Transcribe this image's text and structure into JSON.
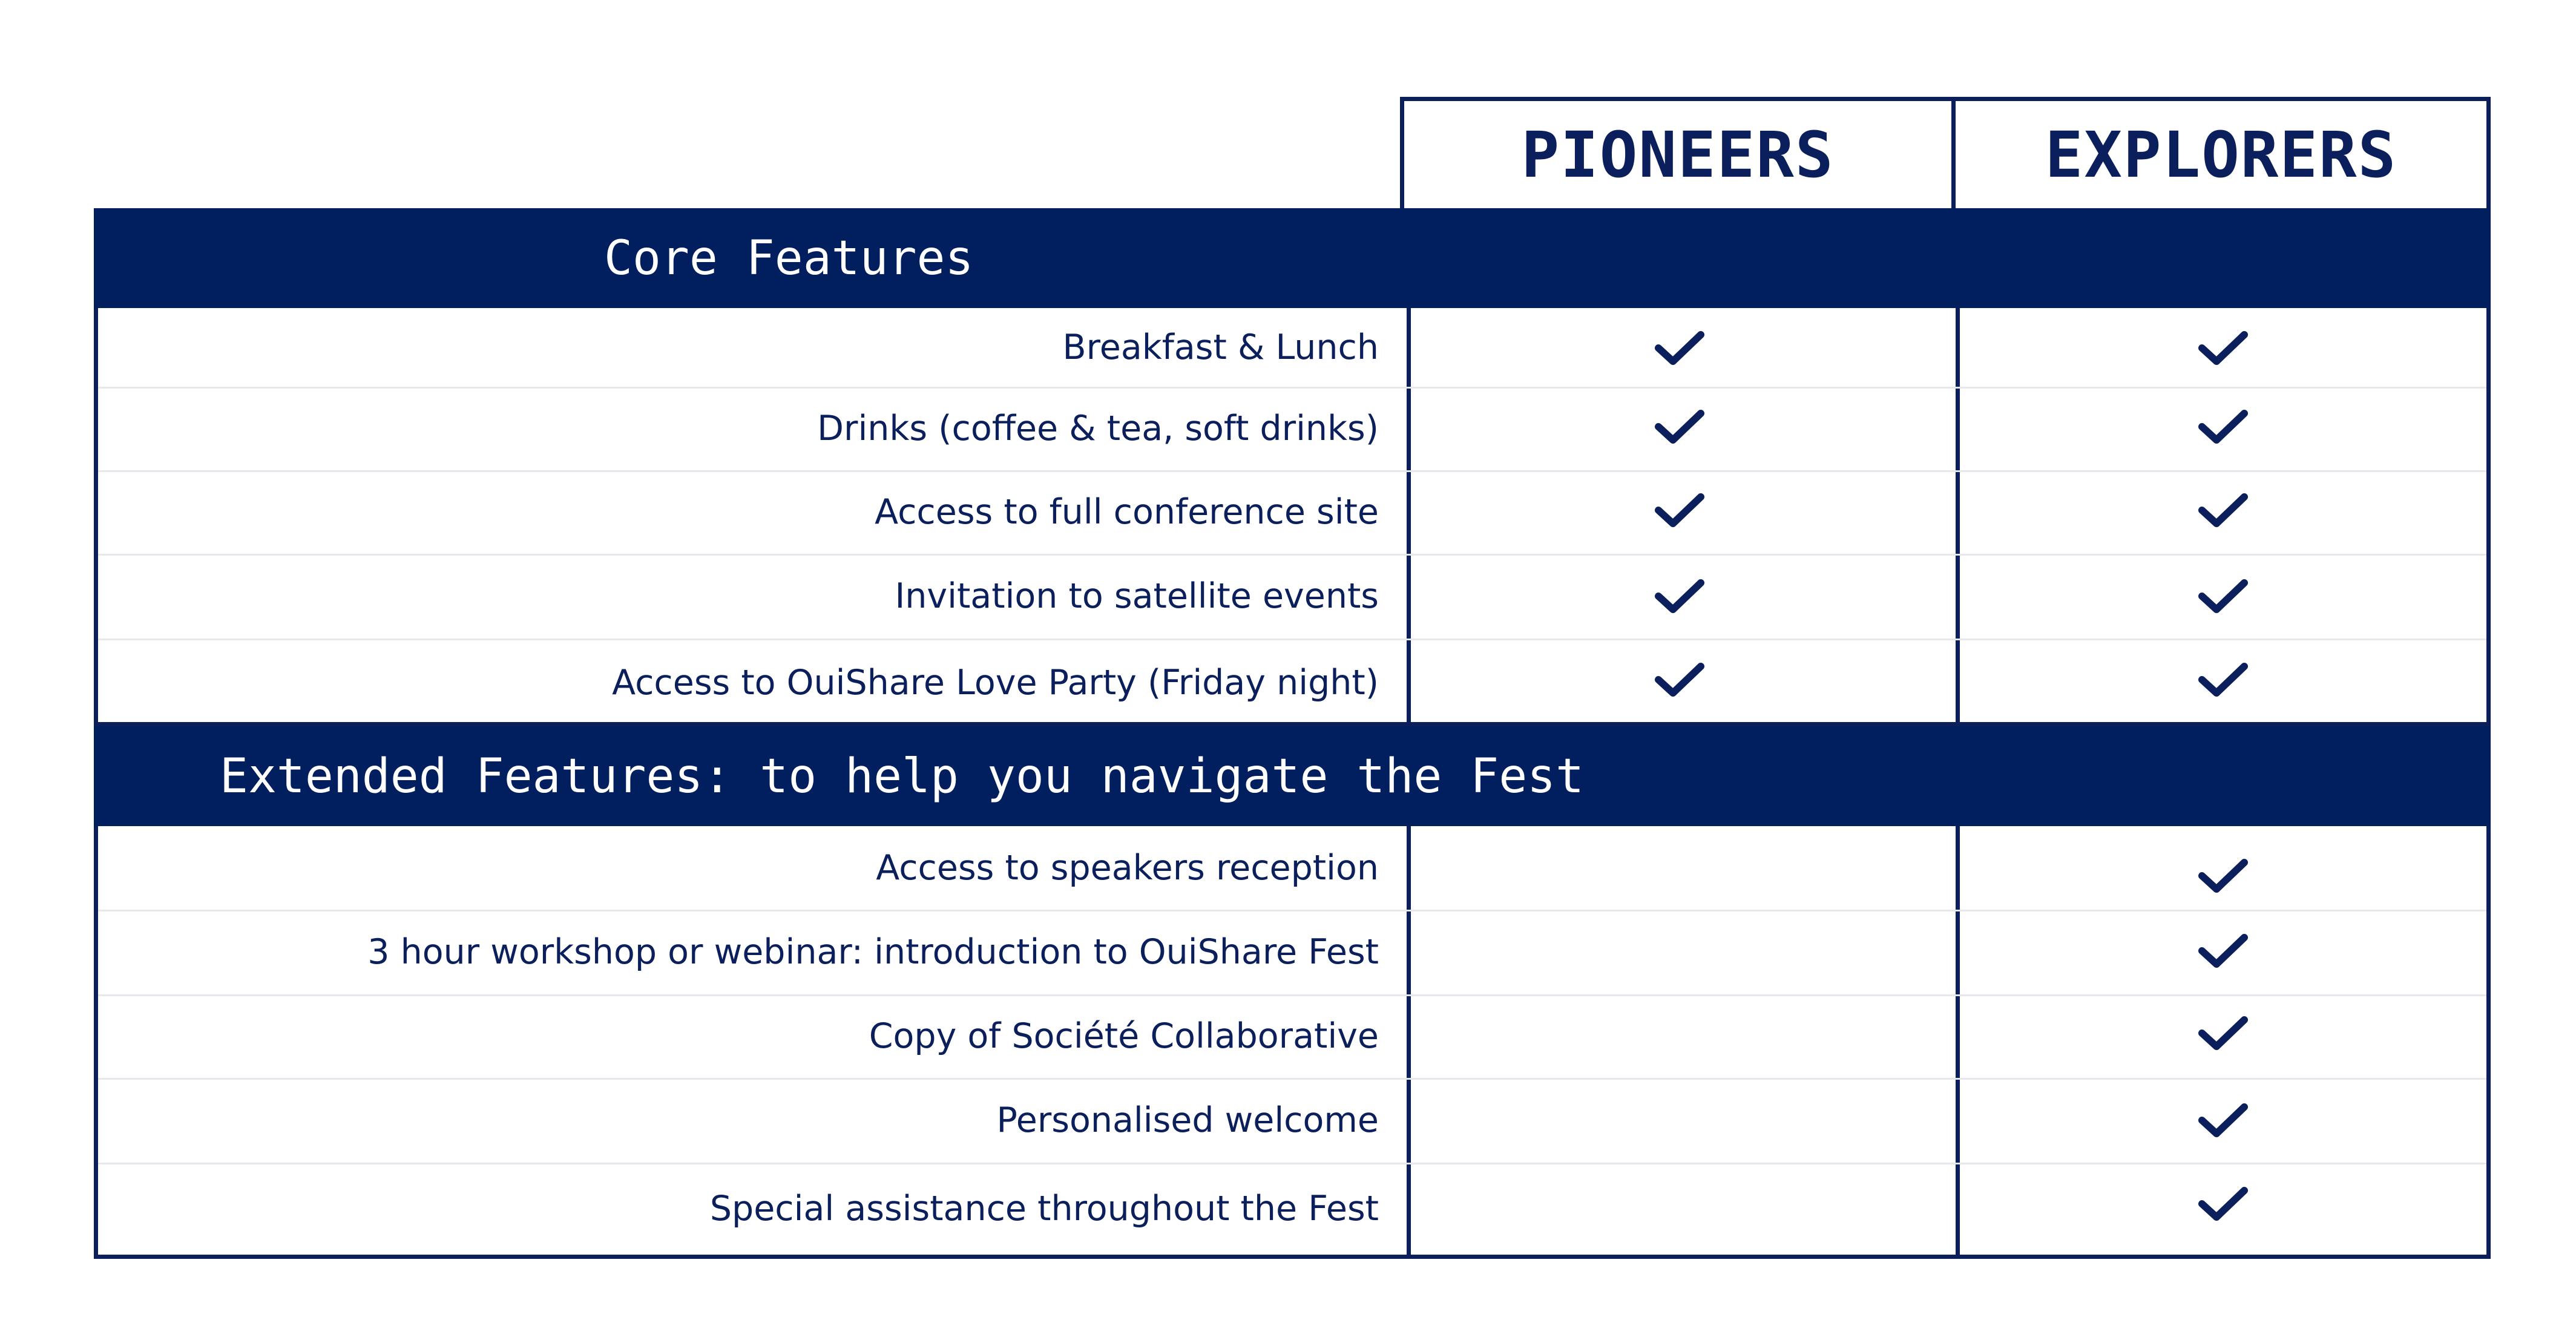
{
  "columns": {
    "pioneers": "PIONEERS",
    "explorers": "EXPLORERS"
  },
  "core": {
    "title": "Core Features",
    "rows": [
      {
        "label": "Breakfast & Lunch",
        "pioneers": true,
        "explorers": true
      },
      {
        "label": "Drinks (coffee & tea, soft drinks)",
        "pioneers": true,
        "explorers": true
      },
      {
        "label": "Access to full conference site",
        "pioneers": true,
        "explorers": true
      },
      {
        "label": "Invitation to satellite events",
        "pioneers": true,
        "explorers": true
      },
      {
        "label": "Access to OuiShare Love Party (Friday night)",
        "pioneers": true,
        "explorers": true
      }
    ]
  },
  "extended": {
    "title": "Extended Features: to help you navigate the Fest",
    "rows": [
      {
        "label": "Access to speakers reception",
        "pioneers": false,
        "explorers": true
      },
      {
        "label": "3 hour workshop or webinar: introduction to OuiShare Fest",
        "pioneers": false,
        "explorers": true
      },
      {
        "label": "Copy of Société Collaborative",
        "pioneers": false,
        "explorers": true
      },
      {
        "label": "Personalised welcome",
        "pioneers": false,
        "explorers": true
      },
      {
        "label": "Special assistance throughout the Fest",
        "pioneers": false,
        "explorers": true
      }
    ]
  },
  "icons": {
    "check": "checkmark-icon"
  },
  "colors": {
    "navy": "#011f5e",
    "text": "#0b1f5c",
    "separator": "#e6e8ee"
  }
}
